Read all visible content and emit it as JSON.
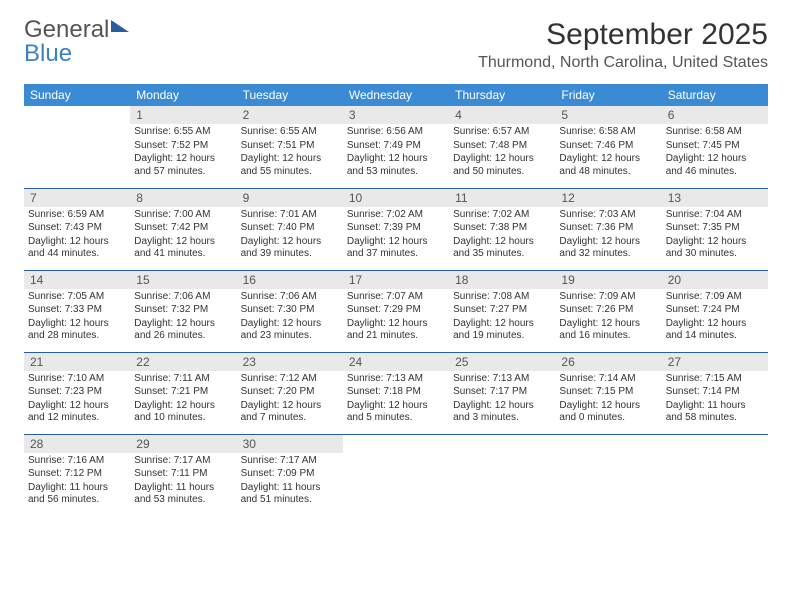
{
  "brand": {
    "word1": "General",
    "word2": "Blue"
  },
  "title": "September 2025",
  "location": "Thurmond, North Carolina, United States",
  "colors": {
    "headerBg": "#3b8bd4",
    "headerText": "#ffffff",
    "dayNumBg": "#e9e9e9",
    "rowBorder": "#2a5d9e",
    "brandBlue": "#3b7fc4"
  },
  "weekdays": [
    "Sunday",
    "Monday",
    "Tuesday",
    "Wednesday",
    "Thursday",
    "Friday",
    "Saturday"
  ],
  "grid": [
    [
      null,
      {
        "n": "1",
        "sr": "6:55 AM",
        "ss": "7:52 PM",
        "dl": "12 hours and 57 minutes."
      },
      {
        "n": "2",
        "sr": "6:55 AM",
        "ss": "7:51 PM",
        "dl": "12 hours and 55 minutes."
      },
      {
        "n": "3",
        "sr": "6:56 AM",
        "ss": "7:49 PM",
        "dl": "12 hours and 53 minutes."
      },
      {
        "n": "4",
        "sr": "6:57 AM",
        "ss": "7:48 PM",
        "dl": "12 hours and 50 minutes."
      },
      {
        "n": "5",
        "sr": "6:58 AM",
        "ss": "7:46 PM",
        "dl": "12 hours and 48 minutes."
      },
      {
        "n": "6",
        "sr": "6:58 AM",
        "ss": "7:45 PM",
        "dl": "12 hours and 46 minutes."
      }
    ],
    [
      {
        "n": "7",
        "sr": "6:59 AM",
        "ss": "7:43 PM",
        "dl": "12 hours and 44 minutes."
      },
      {
        "n": "8",
        "sr": "7:00 AM",
        "ss": "7:42 PM",
        "dl": "12 hours and 41 minutes."
      },
      {
        "n": "9",
        "sr": "7:01 AM",
        "ss": "7:40 PM",
        "dl": "12 hours and 39 minutes."
      },
      {
        "n": "10",
        "sr": "7:02 AM",
        "ss": "7:39 PM",
        "dl": "12 hours and 37 minutes."
      },
      {
        "n": "11",
        "sr": "7:02 AM",
        "ss": "7:38 PM",
        "dl": "12 hours and 35 minutes."
      },
      {
        "n": "12",
        "sr": "7:03 AM",
        "ss": "7:36 PM",
        "dl": "12 hours and 32 minutes."
      },
      {
        "n": "13",
        "sr": "7:04 AM",
        "ss": "7:35 PM",
        "dl": "12 hours and 30 minutes."
      }
    ],
    [
      {
        "n": "14",
        "sr": "7:05 AM",
        "ss": "7:33 PM",
        "dl": "12 hours and 28 minutes."
      },
      {
        "n": "15",
        "sr": "7:06 AM",
        "ss": "7:32 PM",
        "dl": "12 hours and 26 minutes."
      },
      {
        "n": "16",
        "sr": "7:06 AM",
        "ss": "7:30 PM",
        "dl": "12 hours and 23 minutes."
      },
      {
        "n": "17",
        "sr": "7:07 AM",
        "ss": "7:29 PM",
        "dl": "12 hours and 21 minutes."
      },
      {
        "n": "18",
        "sr": "7:08 AM",
        "ss": "7:27 PM",
        "dl": "12 hours and 19 minutes."
      },
      {
        "n": "19",
        "sr": "7:09 AM",
        "ss": "7:26 PM",
        "dl": "12 hours and 16 minutes."
      },
      {
        "n": "20",
        "sr": "7:09 AM",
        "ss": "7:24 PM",
        "dl": "12 hours and 14 minutes."
      }
    ],
    [
      {
        "n": "21",
        "sr": "7:10 AM",
        "ss": "7:23 PM",
        "dl": "12 hours and 12 minutes."
      },
      {
        "n": "22",
        "sr": "7:11 AM",
        "ss": "7:21 PM",
        "dl": "12 hours and 10 minutes."
      },
      {
        "n": "23",
        "sr": "7:12 AM",
        "ss": "7:20 PM",
        "dl": "12 hours and 7 minutes."
      },
      {
        "n": "24",
        "sr": "7:13 AM",
        "ss": "7:18 PM",
        "dl": "12 hours and 5 minutes."
      },
      {
        "n": "25",
        "sr": "7:13 AM",
        "ss": "7:17 PM",
        "dl": "12 hours and 3 minutes."
      },
      {
        "n": "26",
        "sr": "7:14 AM",
        "ss": "7:15 PM",
        "dl": "12 hours and 0 minutes."
      },
      {
        "n": "27",
        "sr": "7:15 AM",
        "ss": "7:14 PM",
        "dl": "11 hours and 58 minutes."
      }
    ],
    [
      {
        "n": "28",
        "sr": "7:16 AM",
        "ss": "7:12 PM",
        "dl": "11 hours and 56 minutes."
      },
      {
        "n": "29",
        "sr": "7:17 AM",
        "ss": "7:11 PM",
        "dl": "11 hours and 53 minutes."
      },
      {
        "n": "30",
        "sr": "7:17 AM",
        "ss": "7:09 PM",
        "dl": "11 hours and 51 minutes."
      },
      null,
      null,
      null,
      null
    ]
  ],
  "labels": {
    "sunrise": "Sunrise:",
    "sunset": "Sunset:",
    "daylight": "Daylight:"
  }
}
